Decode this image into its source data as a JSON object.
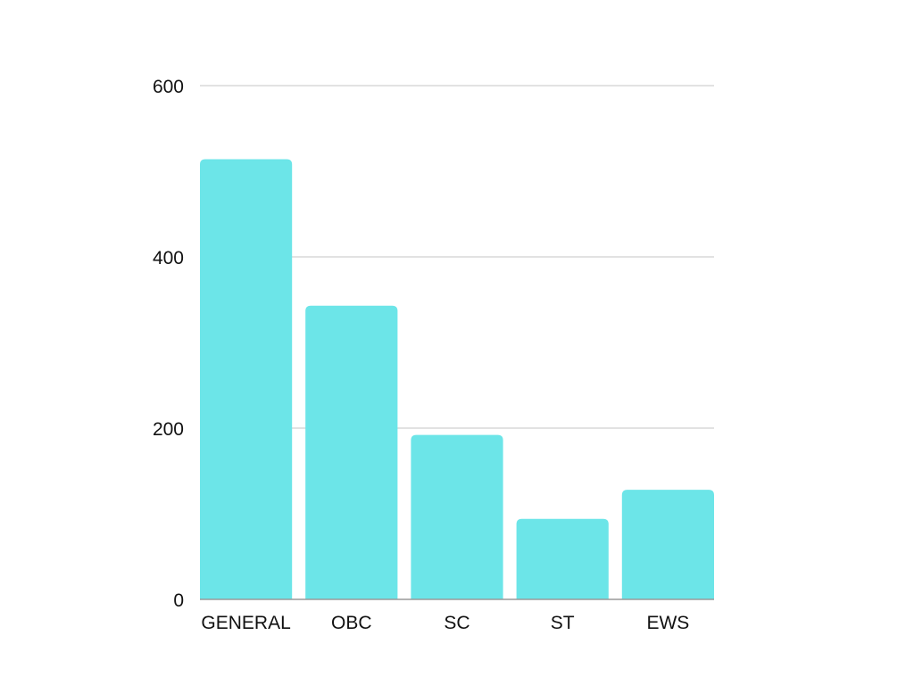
{
  "chart_data": {
    "type": "bar",
    "title": "",
    "xlabel": "",
    "ylabel": "",
    "categories": [
      "GENERAL",
      "OBC",
      "SC",
      "ST",
      "EWS"
    ],
    "values": [
      514,
      343,
      192,
      94,
      128
    ],
    "ylim": [
      0,
      600
    ],
    "yticks": [
      0,
      200,
      400,
      600
    ],
    "grid": true,
    "legend": "none",
    "bar_color": "#6ce5e8"
  }
}
